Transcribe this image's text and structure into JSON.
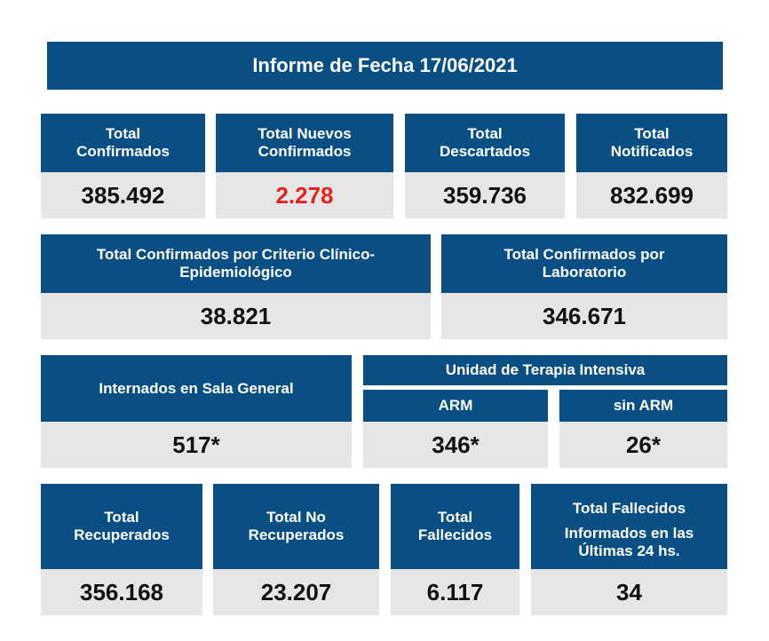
{
  "title": "Informe de Fecha 17/06/2021",
  "row1": [
    {
      "line1": "Total",
      "line2": "Confirmados",
      "value": "385.492"
    },
    {
      "line1": "Total Nuevos",
      "line2": "Confirmados",
      "value": "2.278"
    },
    {
      "line1": "Total",
      "line2": "Descartados",
      "value": "359.736"
    },
    {
      "line1": "Total",
      "line2": "Notificados",
      "value": "832.699"
    }
  ],
  "row2": [
    {
      "line1": "Total Confirmados por Criterio Clínico-",
      "line2": "Epidemiológico",
      "value": "38.821"
    },
    {
      "line1": "Total Confirmados por",
      "line2": "Laboratorio",
      "value": "346.671"
    }
  ],
  "row3": {
    "internados": {
      "label": "Internados en Sala General",
      "value": "517*"
    },
    "uti_label": "Unidad de Terapia Intensiva",
    "arm": {
      "label": "ARM",
      "value": "346*"
    },
    "sin_arm": {
      "label": "sin ARM",
      "value": "26*"
    }
  },
  "row4": [
    {
      "line1": "Total",
      "line2": "Recuperados",
      "value": "356.168"
    },
    {
      "line1": "Total No",
      "line2": "Recuperados",
      "value": "23.207"
    },
    {
      "line1": "Total",
      "line2": "Fallecidos",
      "value": "6.117"
    }
  ],
  "fallecidos24": {
    "line1": "Total Fallecidos",
    "line2": "Informados en las",
    "line3": "Últimas 24 hs.",
    "value": "34"
  },
  "colors": {
    "header": "#0a4f84",
    "value_bg": "#e6e6e6",
    "highlight": "#e32222"
  }
}
